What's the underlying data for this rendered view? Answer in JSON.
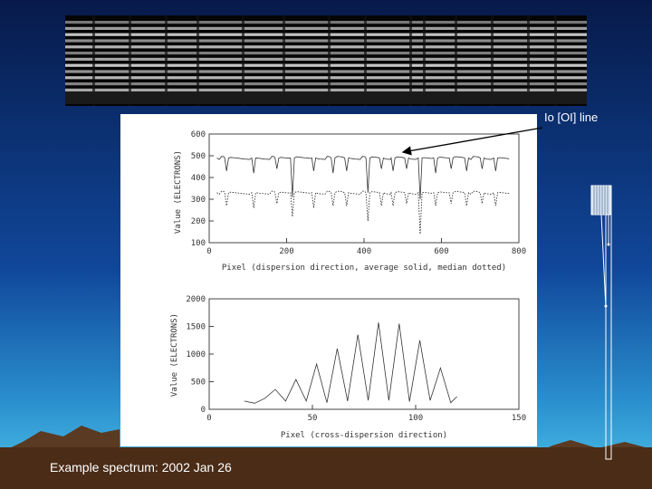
{
  "slide": {
    "annotation_label": "Io [OI] line",
    "caption": "Example spectrum: 2002 Jan 26"
  },
  "chart_data": [
    {
      "type": "line",
      "title": "",
      "xlabel": "Pixel (dispersion direction, average solid, median dotted)",
      "ylabel": "Value (ELECTRONS)",
      "xlim": [
        0,
        800
      ],
      "ylim": [
        100,
        600
      ],
      "xticks": [
        "0",
        "200",
        "400",
        "600",
        "800"
      ],
      "yticks": [
        "100",
        "200",
        "300",
        "400",
        "500",
        "600"
      ],
      "series": [
        {
          "style": "solid",
          "baseline": 490,
          "x": [
            20,
            780
          ],
          "dips": [
            [
              45,
              430
            ],
            [
              115,
              420
            ],
            [
              175,
              440
            ],
            [
              215,
              310
            ],
            [
              270,
              430
            ],
            [
              320,
              420
            ],
            [
              355,
              430
            ],
            [
              410,
              330
            ],
            [
              445,
              440
            ],
            [
              475,
              430
            ],
            [
              510,
              440
            ],
            [
              545,
              300
            ],
            [
              585,
              420
            ],
            [
              625,
              440
            ],
            [
              665,
              430
            ],
            [
              705,
              440
            ],
            [
              740,
              430
            ]
          ]
        },
        {
          "style": "dotted",
          "baseline": 330,
          "x": [
            20,
            780
          ],
          "dips": [
            [
              45,
              270
            ],
            [
              115,
              260
            ],
            [
              175,
              280
            ],
            [
              215,
              220
            ],
            [
              270,
              260
            ],
            [
              320,
              270
            ],
            [
              355,
              270
            ],
            [
              410,
              200
            ],
            [
              445,
              270
            ],
            [
              475,
              270
            ],
            [
              510,
              280
            ],
            [
              545,
              140
            ],
            [
              585,
              270
            ],
            [
              625,
              280
            ],
            [
              665,
              270
            ],
            [
              705,
              280
            ],
            [
              740,
              270
            ]
          ]
        }
      ]
    },
    {
      "type": "line",
      "title": "",
      "xlabel": "Pixel (cross-dispersion direction)",
      "ylabel": "Value (ELECTRONS)",
      "xlim": [
        0,
        150
      ],
      "ylim": [
        0,
        2000
      ],
      "xticks": [
        "0",
        "50",
        "100",
        "150"
      ],
      "yticks": [
        "0",
        "500",
        "1000",
        "1500",
        "2000"
      ],
      "series": [
        {
          "style": "solid",
          "x": [
            17,
            22,
            27,
            32,
            37,
            42,
            47,
            52,
            57,
            62,
            67,
            72,
            77,
            82,
            87,
            92,
            97,
            102,
            107,
            112,
            117,
            120
          ],
          "y": [
            150,
            110,
            200,
            360,
            150,
            540,
            150,
            820,
            120,
            1100,
            150,
            1350,
            160,
            1570,
            160,
            1550,
            140,
            1250,
            160,
            750,
            120,
            230
          ]
        }
      ]
    }
  ]
}
